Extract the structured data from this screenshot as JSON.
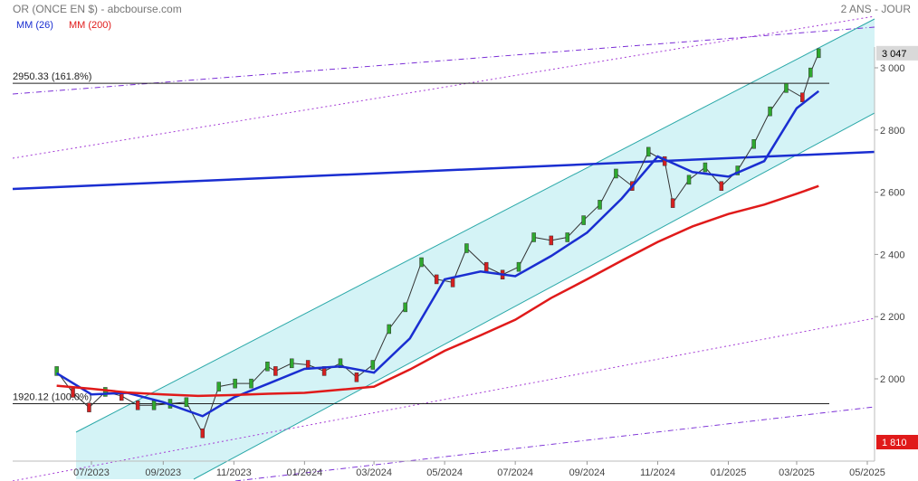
{
  "header": {
    "title": "OR (ONCE EN $) - abcbourse.com",
    "period": "2 ANS - JOUR"
  },
  "legend": [
    {
      "name": "MM (26)",
      "color": "#1a2ed1"
    },
    {
      "name": "MM (200)",
      "color": "#e01a1a"
    }
  ],
  "chart_data": {
    "type": "line",
    "title": "OR (ONCE EN $)",
    "x_axis_labels": [
      "07/2023",
      "09/2023",
      "11/2023",
      "01/2024",
      "03/2024",
      "05/2024",
      "07/2024",
      "09/2024",
      "11/2024",
      "01/2025",
      "03/2025",
      "05/2025"
    ],
    "y_axis": {
      "ticks": [
        2000,
        2200,
        2400,
        2600,
        2800,
        3000
      ],
      "tick_labels": [
        "2 000",
        "2 200",
        "2 400",
        "2 600",
        "2 800",
        "3 000"
      ],
      "range": [
        1810,
        3155
      ],
      "position": "right"
    },
    "grid": false,
    "price_markers": [
      {
        "label": "3 047",
        "value": 3047,
        "bg": "#d9d9d9",
        "fg": "#000000"
      },
      {
        "label": "1 810",
        "value": 1810,
        "bg": "#e01a1a",
        "fg": "#ffffff"
      }
    ],
    "fibonacci_levels": [
      {
        "label": "2950.33  (161.8%)",
        "value": 2950.33
      },
      {
        "label": "1920.12  (100.0%)",
        "value": 1920.12
      }
    ],
    "close_series": [
      [
        "2023-06-01",
        2025
      ],
      [
        "2023-06-15",
        1955
      ],
      [
        "2023-06-29",
        1908
      ],
      [
        "2023-07-13",
        1958
      ],
      [
        "2023-07-27",
        1945
      ],
      [
        "2023-08-10",
        1915
      ],
      [
        "2023-08-24",
        1915
      ],
      [
        "2023-09-07",
        1920
      ],
      [
        "2023-09-21",
        1925
      ],
      [
        "2023-10-05",
        1825
      ],
      [
        "2023-10-19",
        1975
      ],
      [
        "2023-11-02",
        1985
      ],
      [
        "2023-11-16",
        1985
      ],
      [
        "2023-11-30",
        2040
      ],
      [
        "2023-12-07",
        2025
      ],
      [
        "2023-12-21",
        2050
      ],
      [
        "2024-01-04",
        2045
      ],
      [
        "2024-01-18",
        2025
      ],
      [
        "2024-02-01",
        2050
      ],
      [
        "2024-02-15",
        2005
      ],
      [
        "2024-02-29",
        2045
      ],
      [
        "2024-03-14",
        2160
      ],
      [
        "2024-03-28",
        2230
      ],
      [
        "2024-04-11",
        2375
      ],
      [
        "2024-04-24",
        2320
      ],
      [
        "2024-05-08",
        2310
      ],
      [
        "2024-05-20",
        2420
      ],
      [
        "2024-06-06",
        2360
      ],
      [
        "2024-06-20",
        2335
      ],
      [
        "2024-07-04",
        2360
      ],
      [
        "2024-07-17",
        2455
      ],
      [
        "2024-08-01",
        2445
      ],
      [
        "2024-08-15",
        2455
      ],
      [
        "2024-08-29",
        2510
      ],
      [
        "2024-09-12",
        2560
      ],
      [
        "2024-09-26",
        2660
      ],
      [
        "2024-10-10",
        2620
      ],
      [
        "2024-10-24",
        2730
      ],
      [
        "2024-11-07",
        2700
      ],
      [
        "2024-11-14",
        2565
      ],
      [
        "2024-11-28",
        2640
      ],
      [
        "2024-12-12",
        2680
      ],
      [
        "2024-12-26",
        2620
      ],
      [
        "2025-01-09",
        2670
      ],
      [
        "2025-01-23",
        2755
      ],
      [
        "2025-02-06",
        2860
      ],
      [
        "2025-02-20",
        2935
      ],
      [
        "2025-03-06",
        2905
      ],
      [
        "2025-03-13",
        2985
      ],
      [
        "2025-03-20",
        3047
      ]
    ],
    "series": [
      {
        "name": "MM (26)",
        "color": "#1a2ed1",
        "values": [
          [
            "2023-06-01",
            2018
          ],
          [
            "2023-07-01",
            1950
          ],
          [
            "2023-08-01",
            1955
          ],
          [
            "2023-09-01",
            1925
          ],
          [
            "2023-10-05",
            1880
          ],
          [
            "2023-11-01",
            1940
          ],
          [
            "2023-12-01",
            1985
          ],
          [
            "2024-01-01",
            2032
          ],
          [
            "2024-02-01",
            2040
          ],
          [
            "2024-03-01",
            2020
          ],
          [
            "2024-04-01",
            2130
          ],
          [
            "2024-05-01",
            2320
          ],
          [
            "2024-06-01",
            2345
          ],
          [
            "2024-07-01",
            2330
          ],
          [
            "2024-08-01",
            2395
          ],
          [
            "2024-09-01",
            2470
          ],
          [
            "2024-10-01",
            2580
          ],
          [
            "2024-11-01",
            2715
          ],
          [
            "2024-12-01",
            2665
          ],
          [
            "2025-01-01",
            2650
          ],
          [
            "2025-02-01",
            2700
          ],
          [
            "2025-03-01",
            2870
          ],
          [
            "2025-03-20",
            2925
          ]
        ]
      },
      {
        "name": "MM (200)",
        "color": "#e01a1a",
        "values": [
          [
            "2023-06-01",
            1978
          ],
          [
            "2023-07-01",
            1968
          ],
          [
            "2023-08-01",
            1956
          ],
          [
            "2023-09-01",
            1950
          ],
          [
            "2023-10-01",
            1945
          ],
          [
            "2023-11-01",
            1948
          ],
          [
            "2023-12-01",
            1952
          ],
          [
            "2024-01-01",
            1955
          ],
          [
            "2024-02-01",
            1965
          ],
          [
            "2024-03-01",
            1975
          ],
          [
            "2024-04-01",
            2030
          ],
          [
            "2024-05-01",
            2090
          ],
          [
            "2024-06-01",
            2140
          ],
          [
            "2024-07-01",
            2190
          ],
          [
            "2024-08-01",
            2260
          ],
          [
            "2024-09-01",
            2320
          ],
          [
            "2024-10-01",
            2380
          ],
          [
            "2024-11-01",
            2440
          ],
          [
            "2024-12-01",
            2490
          ],
          [
            "2025-01-01",
            2530
          ],
          [
            "2025-02-01",
            2560
          ],
          [
            "2025-03-01",
            2595
          ],
          [
            "2025-03-20",
            2620
          ]
        ]
      }
    ]
  }
}
